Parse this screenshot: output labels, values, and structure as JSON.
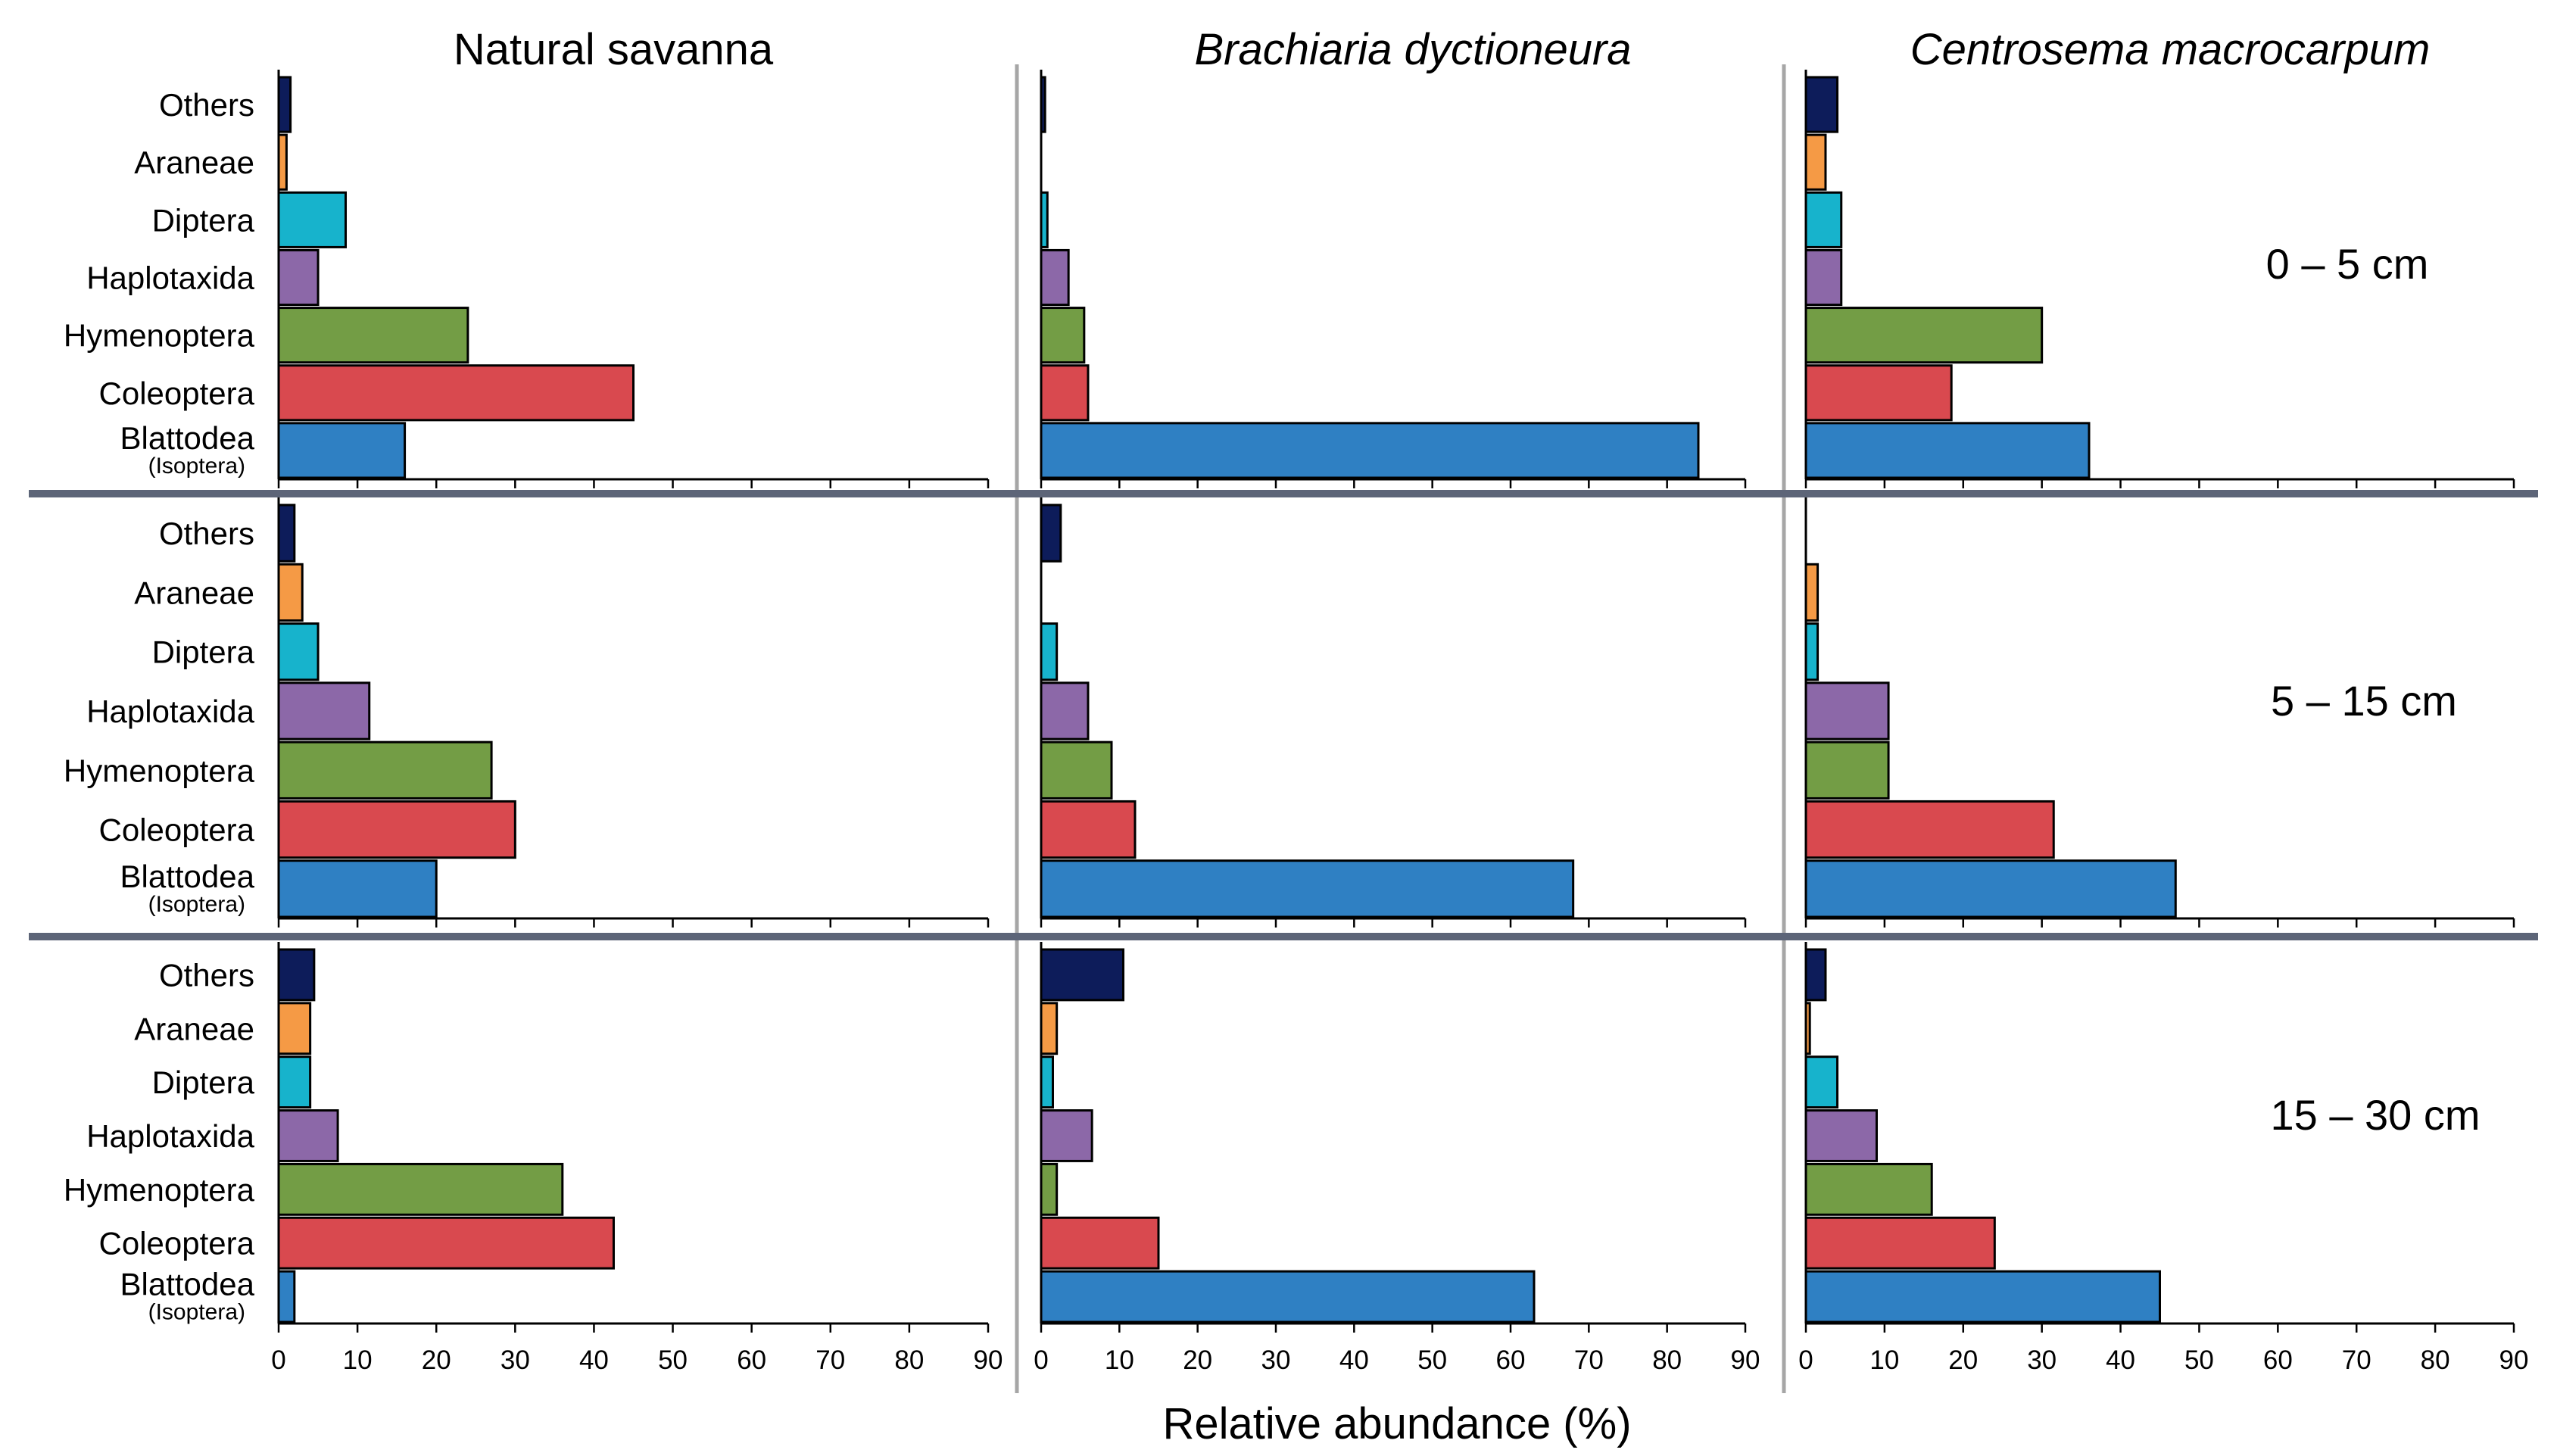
{
  "figure": {
    "x_axis_title": "Relative abundance (%)",
    "column_titles": [
      "Natural savanna",
      "Brachiaria dyctioneura",
      "Centrosema macrocarpum"
    ],
    "depth_labels": [
      "0 – 5 cm",
      "5 – 15 cm",
      "15 – 30 cm"
    ],
    "category_sublabel": "(Isoptera)"
  },
  "colors": {
    "Others": "#0d1c5a",
    "Araneae": "#f59a45",
    "Diptera": "#17b3cc",
    "Haplotaxida": "#8c68a8",
    "Hymenoptera": "#739d45",
    "Coleoptera": "#d9494f",
    "Blattodea": "#2f80c3"
  },
  "chart_data": {
    "type": "bar",
    "orientation": "horizontal",
    "xlabel": "Relative abundance (%)",
    "xlim": [
      0,
      90
    ],
    "xticks": [
      0,
      10,
      20,
      30,
      40,
      50,
      60,
      70,
      80,
      90
    ],
    "categories": [
      "Others",
      "Araneae",
      "Diptera",
      "Haplotaxida",
      "Hymenoptera",
      "Coleoptera",
      "Blattodea"
    ],
    "panels": [
      {
        "column": "Natural savanna",
        "depth": "0 – 5 cm",
        "values": [
          1.5,
          1,
          8.5,
          5,
          24,
          45,
          16
        ]
      },
      {
        "column": "Brachiaria dyctioneura",
        "depth": "0 – 5 cm",
        "values": [
          0.5,
          0,
          0.8,
          3.5,
          5.5,
          6,
          84
        ]
      },
      {
        "column": "Centrosema macrocarpum",
        "depth": "0 – 5 cm",
        "values": [
          4,
          2.5,
          4.5,
          4.5,
          30,
          18.5,
          36
        ]
      },
      {
        "column": "Natural savanna",
        "depth": "5 – 15 cm",
        "values": [
          2,
          3,
          5,
          11.5,
          27,
          30,
          20
        ]
      },
      {
        "column": "Brachiaria dyctioneura",
        "depth": "5 – 15 cm",
        "values": [
          2.5,
          0,
          2,
          6,
          9,
          12,
          68
        ]
      },
      {
        "column": "Centrosema macrocarpum",
        "depth": "5 – 15 cm",
        "values": [
          0,
          1.5,
          1.5,
          10.5,
          10.5,
          31.5,
          47
        ]
      },
      {
        "column": "Natural savanna",
        "depth": "15 – 30 cm",
        "values": [
          4.5,
          4,
          4,
          7.5,
          36,
          42.5,
          2
        ]
      },
      {
        "column": "Brachiaria dyctioneura",
        "depth": "15 – 30 cm",
        "values": [
          10.5,
          2,
          1.5,
          6.5,
          2,
          15,
          63
        ]
      },
      {
        "column": "Centrosema macrocarpum",
        "depth": "15 – 30 cm",
        "values": [
          2.5,
          0.5,
          4,
          9,
          16,
          24,
          45
        ]
      }
    ]
  }
}
